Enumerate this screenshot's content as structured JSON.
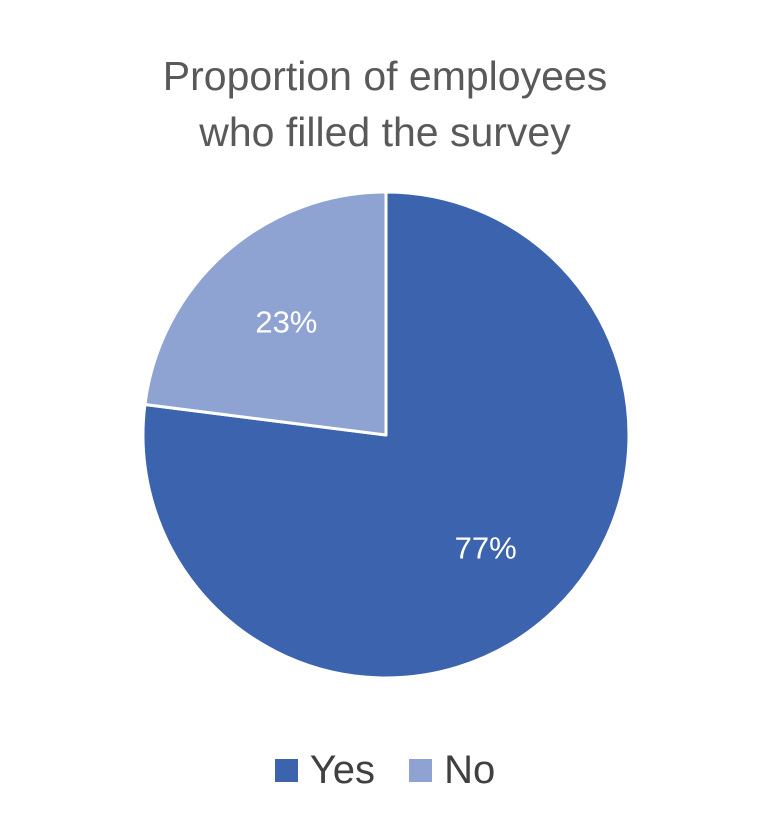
{
  "chart_data": {
    "type": "pie",
    "title_lines": [
      "Proportion of employees",
      "who filled the survey"
    ],
    "slices": [
      {
        "name": "Yes",
        "value": 77,
        "label": "77%",
        "color": "#3C63AE"
      },
      {
        "name": "No",
        "value": 23,
        "label": "23%",
        "color": "#8FA3D3"
      }
    ],
    "legend_position": "bottom",
    "start_angle_deg": 0,
    "direction": "clockwise"
  }
}
